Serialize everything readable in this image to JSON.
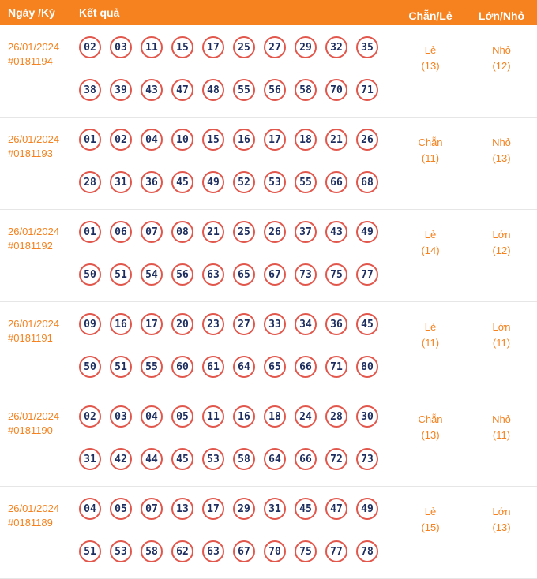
{
  "colors": {
    "header_bg": "#F5821F",
    "accent_orange": "#F5821F",
    "ball_border": "#E2574C",
    "ball_text": "#1D2E5E",
    "separator": "#E6E6E6"
  },
  "header": {
    "col_date": "Ngày /Kỳ",
    "col_result": "Kết quả",
    "col_parity": "Chẵn/Lẻ",
    "col_size": "Lớn/Nhỏ"
  },
  "rows": [
    {
      "date": "26/01/2024",
      "period": "#0181194",
      "numbers_line1": [
        "02",
        "03",
        "11",
        "15",
        "17",
        "25",
        "27",
        "29",
        "32",
        "35"
      ],
      "numbers_line2": [
        "38",
        "39",
        "43",
        "47",
        "48",
        "55",
        "56",
        "58",
        "70",
        "71"
      ],
      "parity": "Lẻ",
      "parity_count": "(13)",
      "size": "Nhỏ",
      "size_count": "(12)"
    },
    {
      "date": "26/01/2024",
      "period": "#0181193",
      "numbers_line1": [
        "01",
        "02",
        "04",
        "10",
        "15",
        "16",
        "17",
        "18",
        "21",
        "26"
      ],
      "numbers_line2": [
        "28",
        "31",
        "36",
        "45",
        "49",
        "52",
        "53",
        "55",
        "66",
        "68"
      ],
      "parity": "Chẵn",
      "parity_count": "(11)",
      "size": "Nhỏ",
      "size_count": "(13)"
    },
    {
      "date": "26/01/2024",
      "period": "#0181192",
      "numbers_line1": [
        "01",
        "06",
        "07",
        "08",
        "21",
        "25",
        "26",
        "37",
        "43",
        "49"
      ],
      "numbers_line2": [
        "50",
        "51",
        "54",
        "56",
        "63",
        "65",
        "67",
        "73",
        "75",
        "77"
      ],
      "parity": "Lẻ",
      "parity_count": "(14)",
      "size": "Lớn",
      "size_count": "(12)"
    },
    {
      "date": "26/01/2024",
      "period": "#0181191",
      "numbers_line1": [
        "09",
        "16",
        "17",
        "20",
        "23",
        "27",
        "33",
        "34",
        "36",
        "45"
      ],
      "numbers_line2": [
        "50",
        "51",
        "55",
        "60",
        "61",
        "64",
        "65",
        "66",
        "71",
        "80"
      ],
      "parity": "Lẻ",
      "parity_count": "(11)",
      "size": "Lớn",
      "size_count": "(11)"
    },
    {
      "date": "26/01/2024",
      "period": "#0181190",
      "numbers_line1": [
        "02",
        "03",
        "04",
        "05",
        "11",
        "16",
        "18",
        "24",
        "28",
        "30"
      ],
      "numbers_line2": [
        "31",
        "42",
        "44",
        "45",
        "53",
        "58",
        "64",
        "66",
        "72",
        "73"
      ],
      "parity": "Chẵn",
      "parity_count": "(13)",
      "size": "Nhỏ",
      "size_count": "(11)"
    },
    {
      "date": "26/01/2024",
      "period": "#0181189",
      "numbers_line1": [
        "04",
        "05",
        "07",
        "13",
        "17",
        "29",
        "31",
        "45",
        "47",
        "49"
      ],
      "numbers_line2": [
        "51",
        "53",
        "58",
        "62",
        "63",
        "67",
        "70",
        "75",
        "77",
        "78"
      ],
      "parity": "Lẻ",
      "parity_count": "(15)",
      "size": "Lớn",
      "size_count": "(13)"
    }
  ]
}
